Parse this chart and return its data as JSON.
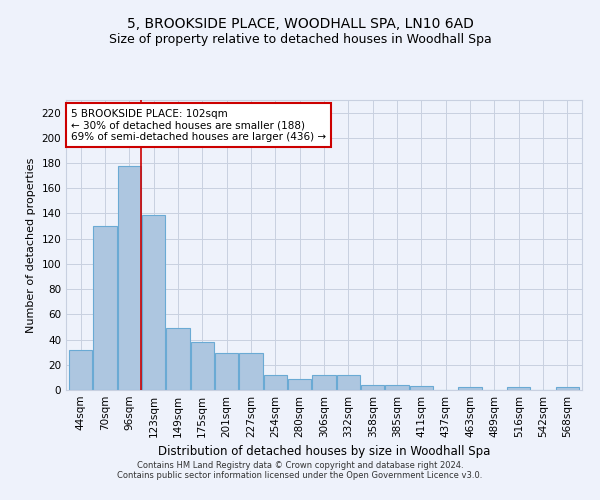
{
  "title": "5, BROOKSIDE PLACE, WOODHALL SPA, LN10 6AD",
  "subtitle": "Size of property relative to detached houses in Woodhall Spa",
  "xlabel": "Distribution of detached houses by size in Woodhall Spa",
  "ylabel": "Number of detached properties",
  "footnote1": "Contains HM Land Registry data © Crown copyright and database right 2024.",
  "footnote2": "Contains public sector information licensed under the Open Government Licence v3.0.",
  "categories": [
    "44sqm",
    "70sqm",
    "96sqm",
    "123sqm",
    "149sqm",
    "175sqm",
    "201sqm",
    "227sqm",
    "254sqm",
    "280sqm",
    "306sqm",
    "332sqm",
    "358sqm",
    "385sqm",
    "411sqm",
    "437sqm",
    "463sqm",
    "489sqm",
    "516sqm",
    "542sqm",
    "568sqm"
  ],
  "values": [
    32,
    130,
    178,
    139,
    49,
    38,
    29,
    29,
    12,
    9,
    12,
    12,
    4,
    4,
    3,
    0,
    2,
    0,
    2,
    0,
    2
  ],
  "bar_color": "#adc6e0",
  "bar_edge_color": "#6aaad4",
  "red_line_x": 2.5,
  "annotation_line1": "5 BROOKSIDE PLACE: 102sqm",
  "annotation_line2": "← 30% of detached houses are smaller (188)",
  "annotation_line3": "69% of semi-detached houses are larger (436) →",
  "annotation_box_color": "#ffffff",
  "annotation_box_edge": "#cc0000",
  "red_line_color": "#cc0000",
  "ylim": [
    0,
    230
  ],
  "yticks": [
    0,
    20,
    40,
    60,
    80,
    100,
    120,
    140,
    160,
    180,
    200,
    220
  ],
  "background_color": "#eef2fb",
  "grid_color": "#c8d0e0",
  "title_fontsize": 10,
  "subtitle_fontsize": 9,
  "ylabel_fontsize": 8,
  "xlabel_fontsize": 8.5,
  "tick_fontsize": 7.5,
  "annotation_fontsize": 7.5,
  "footnote_fontsize": 6
}
